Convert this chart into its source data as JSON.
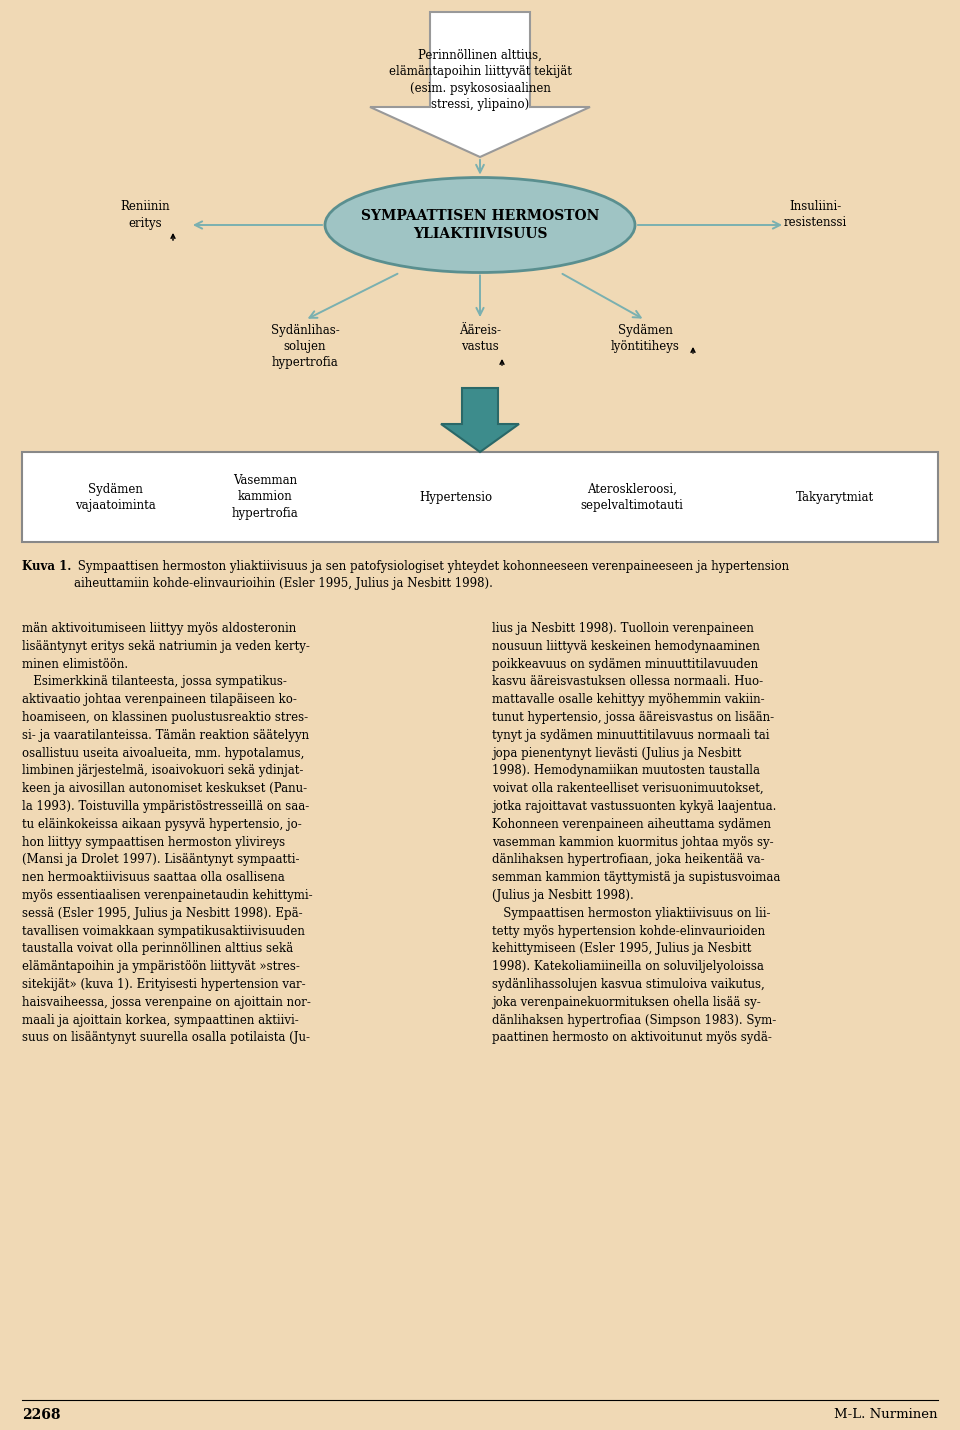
{
  "bg_color": "#f0d9b5",
  "diagram_bg": "#f0d9b5",
  "top_box_text": "Perinnöllinen alttius,\nelämäntapoihin liittyvät tekijät\n(esim. psykososiaalinen\nstressi, ylipaino)",
  "ellipse_text": "SYMPAATTISEN HERMOSTON\nYLIAKTIIVISUUS",
  "ellipse_fill": "#9fc4c4",
  "ellipse_edge": "#5a8f8f",
  "left_label": "Reniinin\neritys",
  "right_label": "Insuliini-\nresistenssi",
  "mid_left_label": "Sydänlihas-\nsolujen\nhypertrofia",
  "mid_center_label": "Ääreis-\nvastus",
  "mid_right_label": "Sydämen\nlyöntitiheys",
  "bottom_box_items": [
    "Sydämen\nvajaatoiminta",
    "Vasemman\nkammion\nhypertrofia",
    "Hypertensio",
    "Ateroskleroosi,\nsepelvaltimotauti",
    "Takyarytmiat"
  ],
  "caption_bold": "Kuva 1.",
  "caption_normal": " Sympaattisen hermoston yliaktiivisuus ja sen patofysiologiset yhteydet kohonneeseen verenpaineeseen ja hypertension\naiheuttamiin kohde-elinvaurioihin (Esler 1995, Julius ja Nesbitt 1998).",
  "left_col_text": "män aktivoitumiseen liittyy myös aldosteronin\nlisääntynyt eritys sekä natriumin ja veden kerty-\nminen elimistöön.\n   Esimerkkinä tilanteesta, jossa sympatikus-\naktivaatio johtaa verenpaineen tilapäiseen ko-\nhoamiseen, on klassinen puolustusreaktio stres-\nsi- ja vaaratilanteissa. Tämän reaktion säätelyyn\nosallistuu useita aivoalueita, mm. hypotalamus,\nlimbinen järjestelmä, isoaivokuori sekä ydinjat-\nkeen ja aivosillan autonomiset keskukset (Panu-\nla 1993). Toistuvilla ympäristöstresseillä on saa-\ntu eläinkokeissa aikaan pysyvä hypertensio, jo-\nhon liittyy sympaattisen hermoston ylivireys\n(Mansi ja Drolet 1997). Lisääntynyt sympaatti-\nnen hermoaktiivisuus saattaa olla osallisena\nmyös essentiaalisen verenpainetaudin kehittymi-\nsessä (Esler 1995, Julius ja Nesbitt 1998). Epä-\ntavallisen voimakkaan sympatikusaktiivisuuden\ntaustalla voivat olla perinnöllinen alttius sekä\nelämäntapoihin ja ympäristöön liittyvät »stres-\nsitekijät» (kuva 1). Erityisesti hypertension var-\nhaisvaiheessa, jossa verenpaine on ajoittain nor-\nmaali ja ajoittain korkea, sympaattinen aktiivi-\nsuus on lisääntynyt suurella osalla potilaista (Ju-",
  "right_col_text": "lius ja Nesbitt 1998). Tuolloin verenpaineen\nnousuun liittyvä keskeinen hemodynaaminen\npoikkeavuus on sydämen minuuttitilavuuden\nkasvu ääreisvastuksen ollessa normaali. Huo-\nmattavalle osalle kehittyy myöhemmin vakiin-\ntunut hypertensio, jossa ääreisvastus on lisään-\ntynyt ja sydämen minuuttitilavuus normaali tai\njopa pienentynyt lievästi (Julius ja Nesbitt\n1998). Hemodynamiikan muutosten taustalla\nvoivat olla rakenteelliset verisuonimuutokset,\njotka rajoittavat vastussuonten kykyä laajentua.\nKohonneen verenpaineen aiheuttama sydämen\nvasemman kammion kuormitus johtaa myös sy-\ndänlihaksen hypertrofiaan, joka heikentää va-\nsemman kammion täyttymistä ja supistusvoimaa\n(Julius ja Nesbitt 1998).\n   Sympaattisen hermoston yliaktiivisuus on lii-\ntetty myös hypertension kohde-elinvaurioiden\nkehittymiseen (Esler 1995, Julius ja Nesbitt\n1998). Katekoliamiineilla on soluviljelyoloissa\nsydänlihassolujen kasvua stimuloiva vaikutus,\njoka verenpainekuormituksen ohella lisää sy-\ndänlihaksen hypertrofiaa (Simpson 1983). Sym-\npaattinen hermosto on aktivoitunut myös sydä-",
  "page_number_left": "2268",
  "page_number_right": "M-L. Nurminen",
  "arrow_teal": "#3d8c8c",
  "arrow_outline": "#7ab0b0",
  "arrow_white_fill": "#ffffff",
  "arrow_white_edge": "#999999"
}
